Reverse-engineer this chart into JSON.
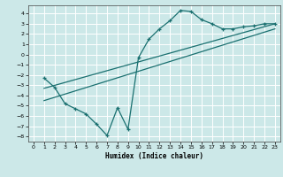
{
  "title": "",
  "xlabel": "Humidex (Indice chaleur)",
  "xlim": [
    -0.5,
    23.5
  ],
  "ylim": [
    -8.5,
    4.8
  ],
  "xticks": [
    0,
    1,
    2,
    3,
    4,
    5,
    6,
    7,
    8,
    9,
    10,
    11,
    12,
    13,
    14,
    15,
    16,
    17,
    18,
    19,
    20,
    21,
    22,
    23
  ],
  "yticks": [
    -8,
    -7,
    -6,
    -5,
    -4,
    -3,
    -2,
    -1,
    0,
    1,
    2,
    3,
    4
  ],
  "bg_color": "#cce8e8",
  "grid_color": "#ffffff",
  "line_color": "#1a7070",
  "curve1_x": [
    1,
    2,
    3,
    4,
    5,
    6,
    7,
    8,
    9,
    10,
    11,
    12,
    13,
    14,
    15,
    16,
    17,
    18,
    19,
    20,
    21,
    22,
    23
  ],
  "curve1_y": [
    -2.3,
    -3.2,
    -4.8,
    -5.3,
    -5.8,
    -6.8,
    -7.9,
    -5.2,
    -7.3,
    -0.3,
    1.5,
    2.5,
    3.3,
    4.3,
    4.2,
    3.4,
    3.0,
    2.5,
    2.5,
    2.7,
    2.8,
    3.0,
    3.0
  ],
  "line2_x": [
    1,
    23
  ],
  "line2_y": [
    -3.3,
    3.0
  ],
  "line3_x": [
    1,
    23
  ],
  "line3_y": [
    -4.5,
    2.5
  ]
}
